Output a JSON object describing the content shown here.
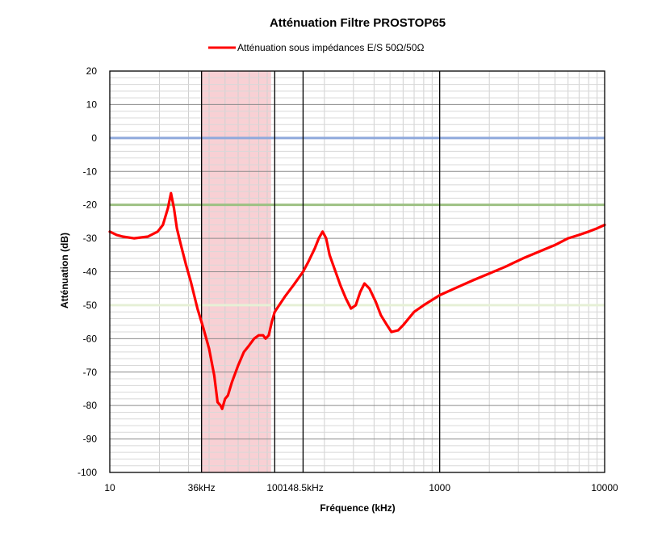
{
  "chart_data": {
    "type": "line",
    "title": "Atténuation  Filtre PROSTOP65",
    "xlabel": "Fréquence (kHz)",
    "ylabel": "Atténuation (dB)",
    "x_scale": "log",
    "xlim": [
      10,
      10000
    ],
    "ylim": [
      -100,
      20
    ],
    "y_ticks": [
      "20",
      "10",
      "0",
      "-10",
      "-20",
      "-30",
      "-40",
      "-50",
      "-60",
      "-70",
      "-80",
      "-90",
      "-100"
    ],
    "x_tick_labels": [
      {
        "x": 10,
        "label": "10"
      },
      {
        "x": 36,
        "label": "36kHz"
      },
      {
        "x": 100,
        "label": "100"
      },
      {
        "x": 148.5,
        "label": "148.5kHz"
      },
      {
        "x": 1000,
        "label": "1000"
      },
      {
        "x": 10000,
        "label": "10000"
      }
    ],
    "grid": true,
    "legend_position": "top",
    "shaded_band": {
      "x_from": 36,
      "x_to": 95,
      "color": "#f8d0d4"
    },
    "vertical_markers": [
      36,
      100,
      148.5,
      1000
    ],
    "reference_lines": [
      {
        "y": 0,
        "color": "#8fa9dc"
      },
      {
        "y": -20,
        "color": "#9dc183"
      },
      {
        "y": -50,
        "color": "#e6f0d6"
      }
    ],
    "series": [
      {
        "name": "Atténuation sous impédances E/S 50Ω/50Ω",
        "color": "#ff0000",
        "points": [
          [
            10,
            -28
          ],
          [
            11,
            -29
          ],
          [
            12,
            -29.5
          ],
          [
            14,
            -30
          ],
          [
            17,
            -29.5
          ],
          [
            19.5,
            -28
          ],
          [
            21,
            -26
          ],
          [
            22.5,
            -21
          ],
          [
            23.5,
            -16.5
          ],
          [
            24.5,
            -21
          ],
          [
            25.5,
            -27
          ],
          [
            27,
            -32
          ],
          [
            29,
            -38
          ],
          [
            31,
            -43
          ],
          [
            34,
            -51
          ],
          [
            37,
            -57
          ],
          [
            40,
            -63
          ],
          [
            43,
            -71
          ],
          [
            45,
            -79
          ],
          [
            47,
            -80
          ],
          [
            48,
            -81
          ],
          [
            50,
            -78
          ],
          [
            52,
            -77
          ],
          [
            55,
            -73
          ],
          [
            60,
            -68
          ],
          [
            65,
            -64
          ],
          [
            70,
            -62
          ],
          [
            75,
            -60
          ],
          [
            80,
            -59
          ],
          [
            85,
            -59
          ],
          [
            88,
            -60
          ],
          [
            92,
            -59
          ],
          [
            96,
            -55
          ],
          [
            100,
            -52
          ],
          [
            115,
            -47.5
          ],
          [
            130,
            -44
          ],
          [
            148.5,
            -40
          ],
          [
            160,
            -37
          ],
          [
            175,
            -33
          ],
          [
            185,
            -30
          ],
          [
            195,
            -28
          ],
          [
            205,
            -30
          ],
          [
            215,
            -35
          ],
          [
            230,
            -39
          ],
          [
            250,
            -44
          ],
          [
            270,
            -48
          ],
          [
            290,
            -51
          ],
          [
            310,
            -50
          ],
          [
            330,
            -46
          ],
          [
            350,
            -43.5
          ],
          [
            375,
            -45
          ],
          [
            410,
            -49
          ],
          [
            440,
            -53
          ],
          [
            480,
            -56
          ],
          [
            510,
            -58
          ],
          [
            560,
            -57.5
          ],
          [
            600,
            -56
          ],
          [
            700,
            -52
          ],
          [
            800,
            -50
          ],
          [
            1000,
            -47
          ],
          [
            1300,
            -44.5
          ],
          [
            1600,
            -42.5
          ],
          [
            2000,
            -40.5
          ],
          [
            2500,
            -38.5
          ],
          [
            3200,
            -36
          ],
          [
            4000,
            -34
          ],
          [
            5000,
            -32
          ],
          [
            6000,
            -30
          ],
          [
            7000,
            -29
          ],
          [
            8000,
            -28
          ],
          [
            9000,
            -27
          ],
          [
            10000,
            -26
          ]
        ]
      }
    ]
  }
}
